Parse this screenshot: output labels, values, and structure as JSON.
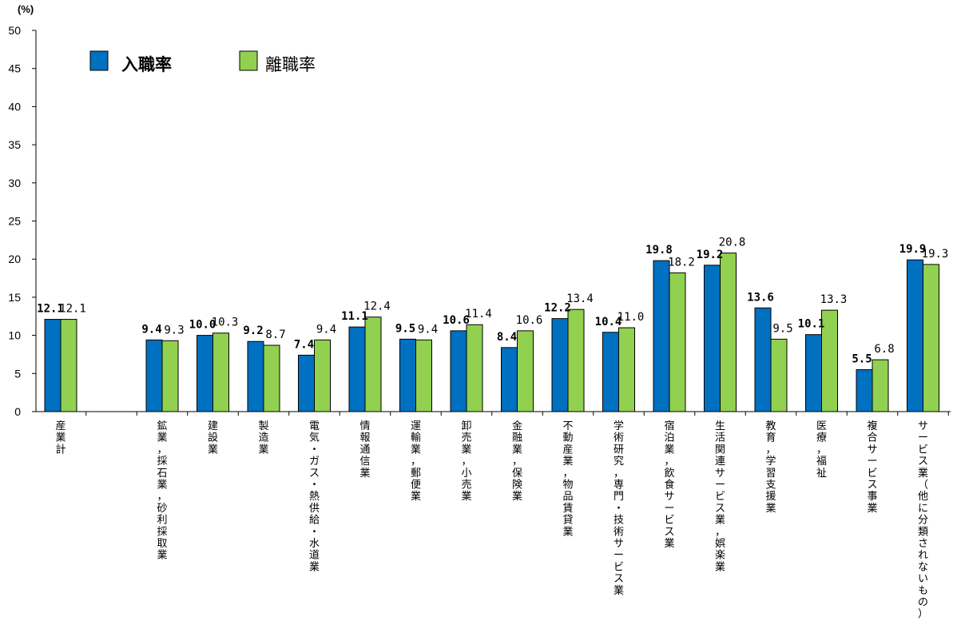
{
  "chart_data": {
    "type": "bar",
    "unit_label": "(%)",
    "ylim": [
      0,
      50
    ],
    "y_ticks": [
      "0",
      "5",
      "10",
      "15",
      "20",
      "25",
      "30",
      "35",
      "40",
      "45",
      "50"
    ],
    "categories": [
      "産業計",
      "鉱業，採石業，砂利採取業",
      "建設業",
      "製造業",
      "電気・ガス・熱供給・水道業",
      "情報通信業",
      "運輸業，郵便業",
      "卸売業，小売業",
      "金融業，保険業",
      "不動産業，物品賃貸業",
      "学術研究，専門・技術サービス業",
      "宿泊業，飲食サービス業",
      "生活関連サービス業，娯楽業",
      "教育，学習支援業",
      "医療，福祉",
      "複合サービス事業",
      "サービス業（他に分類されないもの）"
    ],
    "series": [
      {
        "name": "入職率",
        "color": "#0070C0",
        "values": [
          12.1,
          9.4,
          10.0,
          9.2,
          7.4,
          11.1,
          9.5,
          10.6,
          8.4,
          12.2,
          10.4,
          19.8,
          19.2,
          13.6,
          10.1,
          5.5,
          19.9
        ],
        "labels": [
          "12.1",
          "9.4",
          "10.0",
          "9.2",
          "7.4",
          "11.1",
          "9.5",
          "10.6",
          "8.4",
          "12.2",
          "10.4",
          "19.8",
          "19.2",
          "13.6",
          "10.1",
          "5.5",
          "19.9"
        ]
      },
      {
        "name": "離職率",
        "color": "#92D050",
        "values": [
          12.1,
          9.3,
          10.3,
          8.7,
          9.4,
          12.4,
          9.4,
          11.4,
          10.6,
          13.4,
          11.0,
          18.2,
          20.8,
          9.5,
          13.3,
          6.8,
          19.3
        ],
        "labels": [
          "12.1",
          "9.3",
          "10.3",
          "8.7",
          "9.4",
          "12.4",
          "9.4",
          "11.4",
          "10.6",
          "13.4",
          "11.0",
          "18.2",
          "20.8",
          "9.5",
          "13.3",
          "6.8",
          "19.3"
        ]
      }
    ],
    "grid": false,
    "legend_position": "top-left"
  }
}
